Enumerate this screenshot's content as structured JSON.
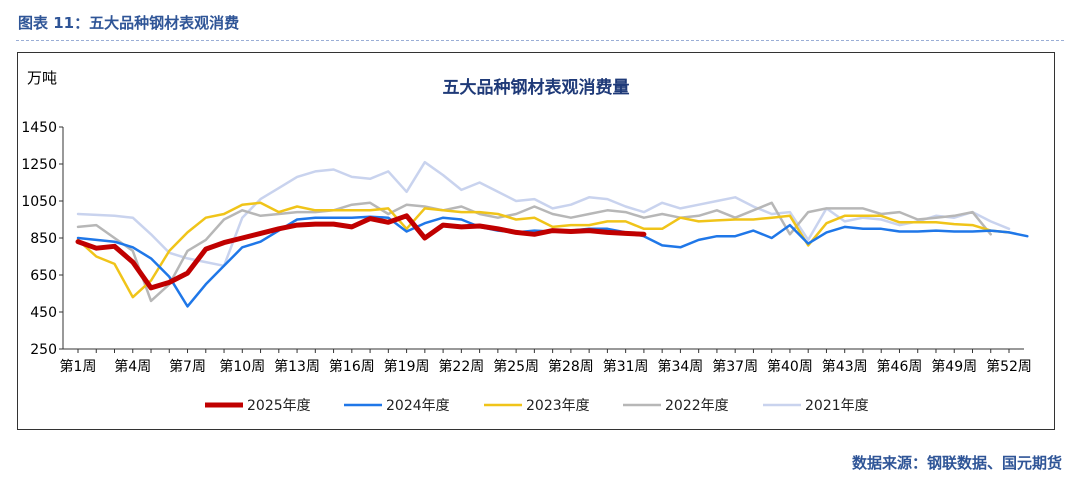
{
  "caption": "图表 11：五大品种钢材表观消费",
  "source": "数据来源：钢联数据、国元期货",
  "chart_data": {
    "type": "line",
    "title": "五大品种钢材表观消费量",
    "unit": "万吨",
    "ylim": [
      250,
      1450
    ],
    "yticks": [
      250,
      450,
      650,
      850,
      1050,
      1250,
      1450
    ],
    "grid": false,
    "legend_position": "bottom",
    "x_tick_labels": [
      "第1周",
      "第4周",
      "第7周",
      "第10周",
      "第13周",
      "第16周",
      "第19周",
      "第22周",
      "第25周",
      "第28周",
      "第31周",
      "第34周",
      "第37周",
      "第40周",
      "第43周",
      "第46周",
      "第49周",
      "第52周"
    ],
    "x_tick_weeks": [
      1,
      4,
      7,
      10,
      13,
      16,
      19,
      22,
      25,
      28,
      31,
      34,
      37,
      40,
      43,
      46,
      49,
      52
    ],
    "series": [
      {
        "name": "2025年度",
        "color": "#c00000",
        "width": 5,
        "values": [
          830,
          795,
          805,
          720,
          580,
          610,
          660,
          790,
          825,
          850,
          875,
          900,
          920,
          925,
          925,
          910,
          955,
          935,
          970,
          850,
          920,
          910,
          915,
          900,
          880,
          870,
          890,
          885,
          890,
          880,
          875,
          870
        ]
      },
      {
        "name": "2024年度",
        "color": "#1f77e8",
        "width": 2.5,
        "values": [
          850,
          840,
          830,
          800,
          740,
          640,
          480,
          600,
          700,
          800,
          830,
          890,
          950,
          960,
          960,
          960,
          965,
          960,
          885,
          930,
          960,
          950,
          910,
          890,
          880,
          890,
          885,
          890,
          900,
          900,
          880,
          860,
          810,
          800,
          840,
          860,
          860,
          890,
          850,
          920,
          820,
          880,
          910,
          900,
          900,
          885,
          885,
          890,
          885,
          885,
          890,
          880,
          860
        ]
      },
      {
        "name": "2023年度",
        "color": "#f0c419",
        "width": 2.5,
        "values": [
          840,
          750,
          710,
          530,
          620,
          780,
          880,
          960,
          980,
          1030,
          1040,
          990,
          1020,
          1000,
          1000,
          1000,
          1000,
          1010,
          900,
          1010,
          1000,
          990,
          990,
          980,
          950,
          960,
          910,
          920,
          920,
          940,
          940,
          900,
          900,
          960,
          940,
          945,
          950,
          950,
          960,
          970,
          810,
          930,
          970,
          970,
          970,
          935,
          935,
          935,
          925,
          920,
          890,
          880
        ]
      },
      {
        "name": "2022年度",
        "color": "#b7b7b7",
        "width": 2.5,
        "values": [
          910,
          920,
          850,
          780,
          510,
          600,
          780,
          840,
          950,
          1000,
          970,
          980,
          990,
          990,
          1000,
          1030,
          1040,
          980,
          1030,
          1020,
          1000,
          1020,
          980,
          960,
          980,
          1020,
          980,
          960,
          980,
          1000,
          990,
          960,
          980,
          960,
          970,
          1000,
          960,
          1000,
          1040,
          870,
          990,
          1010,
          1010,
          1010,
          980,
          990,
          950,
          960,
          970,
          990,
          870
        ]
      },
      {
        "name": "2021年度",
        "color": "#c9d3ee",
        "width": 2.5,
        "values": [
          980,
          975,
          970,
          960,
          870,
          770,
          740,
          720,
          700,
          960,
          1060,
          1120,
          1180,
          1210,
          1220,
          1180,
          1170,
          1210,
          1100,
          1260,
          1190,
          1110,
          1150,
          1100,
          1050,
          1060,
          1010,
          1030,
          1070,
          1060,
          1020,
          990,
          1040,
          1010,
          1030,
          1050,
          1070,
          1020,
          980,
          990,
          840,
          1010,
          940,
          960,
          950,
          920,
          940,
          970,
          960,
          990,
          940,
          900
        ]
      }
    ]
  }
}
